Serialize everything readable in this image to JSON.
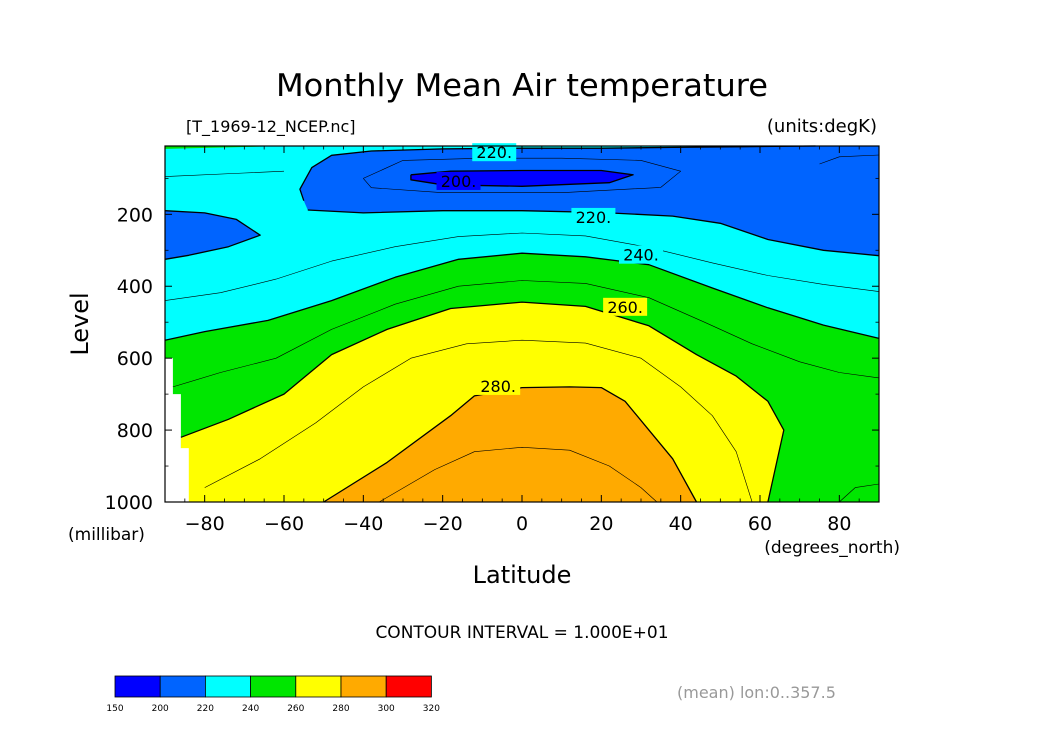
{
  "chart_data": {
    "type": "contour",
    "title": "Monthly Mean Air temperature",
    "subtitle_left": "[T_1969-12_NCEP.nc]",
    "units_label": "(units:degK)",
    "xlabel": "Latitude",
    "x_units": "(degrees_north)",
    "ylabel": "Level",
    "y_units": "(millibar)",
    "xlim": [
      -90,
      90
    ],
    "ylim": [
      1000,
      10
    ],
    "x_ticks": [
      -80,
      -60,
      -40,
      -20,
      0,
      20,
      40,
      60,
      80
    ],
    "x_tick_labels": [
      "−80",
      "−60",
      "−40",
      "−20",
      "0",
      "20",
      "40",
      "60",
      "80"
    ],
    "y_ticks": [
      200,
      400,
      600,
      800,
      1000
    ],
    "contour_interval_text": "CONTOUR INTERVAL = 1.000E+01",
    "mean_note": "(mean) lon:0..357.5",
    "contour_labels": [
      {
        "text": "220.",
        "lat": -7,
        "level": 30
      },
      {
        "text": "200.",
        "lat": -16,
        "level": 110
      },
      {
        "text": "220.",
        "lat": 18,
        "level": 210
      },
      {
        "text": "240.",
        "lat": 30,
        "level": 315
      },
      {
        "text": "260.",
        "lat": 26,
        "level": 460
      },
      {
        "text": "280.",
        "lat": -6,
        "level": 680
      }
    ],
    "colorbar": {
      "levels": [
        150,
        200,
        220,
        240,
        260,
        280,
        300,
        320
      ],
      "colors": [
        "#0000ff",
        "#0064ff",
        "#00ffff",
        "#00e600",
        "#ffff00",
        "#ffaa00",
        "#ff0000"
      ]
    },
    "regions": [
      {
        "fill": "#00ffff",
        "points": [
          [
            -90,
            10
          ],
          [
            90,
            10
          ],
          [
            90,
            1000
          ],
          [
            -90,
            1000
          ]
        ]
      },
      {
        "fill": "#00dd00",
        "points": [
          [
            -90,
            10
          ],
          [
            -60,
            10
          ],
          [
            -90,
            18
          ]
        ]
      },
      {
        "fill": "#0064ff",
        "points": [
          [
            -55,
            162
          ],
          [
            -56,
            130
          ],
          [
            -53,
            70
          ],
          [
            -48,
            36
          ],
          [
            -38,
            24
          ],
          [
            -20,
            18
          ],
          [
            0,
            16
          ],
          [
            20,
            16
          ],
          [
            38,
            14
          ],
          [
            56,
            12
          ],
          [
            74,
            10
          ],
          [
            90,
            10
          ],
          [
            90,
            315
          ],
          [
            76,
            300
          ],
          [
            62,
            270
          ],
          [
            50,
            225
          ],
          [
            38,
            205
          ],
          [
            20,
            195
          ],
          [
            0,
            190
          ],
          [
            -20,
            190
          ],
          [
            -40,
            196
          ],
          [
            -54,
            188
          ]
        ]
      },
      {
        "fill": "#0064ff",
        "points": [
          [
            -90,
            190
          ],
          [
            -80,
            196
          ],
          [
            -72,
            214
          ],
          [
            -66,
            258
          ],
          [
            -74,
            290
          ],
          [
            -84,
            314
          ],
          [
            -90,
            325
          ]
        ]
      },
      {
        "fill": "#0000ff",
        "points": [
          [
            -28,
            90
          ],
          [
            -18,
            80
          ],
          [
            0,
            78
          ],
          [
            20,
            78
          ],
          [
            28,
            90
          ],
          [
            22,
            112
          ],
          [
            0,
            122
          ],
          [
            -20,
            118
          ],
          [
            -28,
            104
          ]
        ]
      },
      {
        "fill": "#00e600",
        "points": [
          [
            -90,
            550
          ],
          [
            -80,
            526
          ],
          [
            -64,
            495
          ],
          [
            -48,
            440
          ],
          [
            -32,
            375
          ],
          [
            -16,
            325
          ],
          [
            0,
            308
          ],
          [
            16,
            318
          ],
          [
            32,
            340
          ],
          [
            48,
            405
          ],
          [
            62,
            460
          ],
          [
            76,
            508
          ],
          [
            90,
            545
          ],
          [
            90,
            1000
          ],
          [
            -90,
            1000
          ]
        ]
      },
      {
        "fill": "#ffff00",
        "points": [
          [
            -86,
            820
          ],
          [
            -74,
            770
          ],
          [
            -60,
            700
          ],
          [
            -48,
            590
          ],
          [
            -34,
            520
          ],
          [
            -18,
            462
          ],
          [
            0,
            444
          ],
          [
            16,
            456
          ],
          [
            32,
            510
          ],
          [
            44,
            590
          ],
          [
            54,
            650
          ],
          [
            62,
            720
          ],
          [
            66,
            800
          ],
          [
            62,
            1000
          ],
          [
            -86,
            1000
          ]
        ]
      },
      {
        "fill": "#ffaa00",
        "points": [
          [
            -50,
            1000
          ],
          [
            -34,
            890
          ],
          [
            -18,
            760
          ],
          [
            -12,
            705
          ],
          [
            0,
            682
          ],
          [
            12,
            680
          ],
          [
            20,
            682
          ],
          [
            26,
            720
          ],
          [
            32,
            800
          ],
          [
            38,
            880
          ],
          [
            44,
            1000
          ]
        ]
      },
      {
        "fill": "#ffffff",
        "points": [
          [
            -90,
            600
          ],
          [
            -88,
            600
          ],
          [
            -88,
            700
          ],
          [
            -86,
            700
          ],
          [
            -86,
            850
          ],
          [
            -84,
            850
          ],
          [
            -84,
            1000
          ],
          [
            -90,
            1000
          ]
        ]
      }
    ],
    "contour_lines": [
      {
        "weight": "thick",
        "points": [
          [
            -55,
            162
          ],
          [
            -56,
            130
          ],
          [
            -53,
            70
          ],
          [
            -48,
            36
          ],
          [
            -38,
            24
          ],
          [
            -20,
            18
          ],
          [
            0,
            16
          ],
          [
            20,
            16
          ],
          [
            38,
            14
          ],
          [
            56,
            12
          ],
          [
            74,
            10
          ]
        ]
      },
      {
        "weight": "thick",
        "points": [
          [
            -54,
            188
          ],
          [
            -40,
            196
          ],
          [
            -20,
            190
          ],
          [
            0,
            190
          ],
          [
            20,
            195
          ],
          [
            38,
            205
          ],
          [
            50,
            225
          ],
          [
            62,
            270
          ],
          [
            76,
            300
          ],
          [
            90,
            315
          ]
        ]
      },
      {
        "weight": "thick",
        "points": [
          [
            -90,
            190
          ],
          [
            -80,
            196
          ],
          [
            -72,
            214
          ],
          [
            -66,
            258
          ],
          [
            -74,
            290
          ],
          [
            -84,
            314
          ],
          [
            -90,
            325
          ]
        ]
      },
      {
        "weight": "thick",
        "points": [
          [
            -28,
            90
          ],
          [
            -18,
            80
          ],
          [
            0,
            78
          ],
          [
            20,
            78
          ],
          [
            28,
            90
          ],
          [
            22,
            112
          ],
          [
            0,
            122
          ],
          [
            -20,
            118
          ],
          [
            -28,
            104
          ],
          [
            -28,
            90
          ]
        ]
      },
      {
        "weight": "thin",
        "points": [
          [
            -40,
            100
          ],
          [
            -30,
            50
          ],
          [
            -10,
            44
          ],
          [
            10,
            44
          ],
          [
            30,
            50
          ],
          [
            40,
            80
          ],
          [
            35,
            125
          ],
          [
            10,
            140
          ],
          [
            -20,
            140
          ],
          [
            -38,
            126
          ],
          [
            -40,
            100
          ]
        ]
      },
      {
        "weight": "thin",
        "points": [
          [
            -90,
            95
          ],
          [
            -70,
            85
          ],
          [
            -60,
            80
          ]
        ]
      },
      {
        "weight": "thin",
        "points": [
          [
            75,
            60
          ],
          [
            80,
            40
          ],
          [
            90,
            35
          ]
        ]
      },
      {
        "weight": "thin",
        "points": [
          [
            -90,
            440
          ],
          [
            -76,
            418
          ],
          [
            -62,
            380
          ],
          [
            -48,
            330
          ],
          [
            -32,
            290
          ],
          [
            -16,
            262
          ],
          [
            0,
            252
          ],
          [
            16,
            260
          ],
          [
            32,
            292
          ],
          [
            48,
            335
          ],
          [
            62,
            370
          ],
          [
            76,
            395
          ],
          [
            90,
            415
          ]
        ]
      },
      {
        "weight": "thick",
        "points": [
          [
            -90,
            550
          ],
          [
            -80,
            526
          ],
          [
            -64,
            495
          ],
          [
            -48,
            440
          ],
          [
            -32,
            375
          ],
          [
            -16,
            325
          ],
          [
            0,
            308
          ],
          [
            16,
            318
          ],
          [
            32,
            340
          ],
          [
            48,
            405
          ],
          [
            62,
            460
          ],
          [
            76,
            508
          ],
          [
            90,
            545
          ]
        ]
      },
      {
        "weight": "thin",
        "points": [
          [
            -88,
            680
          ],
          [
            -76,
            640
          ],
          [
            -62,
            600
          ],
          [
            -48,
            520
          ],
          [
            -32,
            450
          ],
          [
            -16,
            400
          ],
          [
            0,
            384
          ],
          [
            16,
            392
          ],
          [
            32,
            432
          ],
          [
            46,
            500
          ],
          [
            58,
            560
          ],
          [
            70,
            610
          ],
          [
            80,
            640
          ],
          [
            90,
            655
          ]
        ]
      },
      {
        "weight": "thick",
        "points": [
          [
            -86,
            820
          ],
          [
            -74,
            770
          ],
          [
            -60,
            700
          ],
          [
            -48,
            590
          ],
          [
            -34,
            520
          ],
          [
            -18,
            462
          ],
          [
            0,
            444
          ],
          [
            16,
            456
          ],
          [
            32,
            510
          ],
          [
            44,
            590
          ],
          [
            54,
            650
          ],
          [
            62,
            720
          ],
          [
            66,
            800
          ],
          [
            62,
            1000
          ]
        ]
      },
      {
        "weight": "thin",
        "points": [
          [
            -80,
            960
          ],
          [
            -66,
            880
          ],
          [
            -52,
            780
          ],
          [
            -40,
            680
          ],
          [
            -28,
            600
          ],
          [
            -14,
            560
          ],
          [
            0,
            550
          ],
          [
            16,
            558
          ],
          [
            30,
            600
          ],
          [
            40,
            680
          ],
          [
            48,
            760
          ],
          [
            54,
            860
          ],
          [
            58,
            1000
          ]
        ]
      },
      {
        "weight": "thick",
        "points": [
          [
            -50,
            1000
          ],
          [
            -34,
            890
          ],
          [
            -18,
            760
          ],
          [
            -12,
            705
          ],
          [
            0,
            682
          ],
          [
            12,
            680
          ],
          [
            20,
            682
          ],
          [
            26,
            720
          ],
          [
            32,
            800
          ],
          [
            38,
            880
          ],
          [
            44,
            1000
          ]
        ]
      },
      {
        "weight": "thin",
        "points": [
          [
            -36,
            1000
          ],
          [
            -22,
            910
          ],
          [
            -12,
            860
          ],
          [
            0,
            848
          ],
          [
            12,
            856
          ],
          [
            22,
            900
          ],
          [
            30,
            960
          ],
          [
            34,
            1000
          ]
        ]
      },
      {
        "weight": "thin",
        "points": [
          [
            80,
            1000
          ],
          [
            84,
            960
          ],
          [
            90,
            950
          ]
        ]
      }
    ]
  }
}
